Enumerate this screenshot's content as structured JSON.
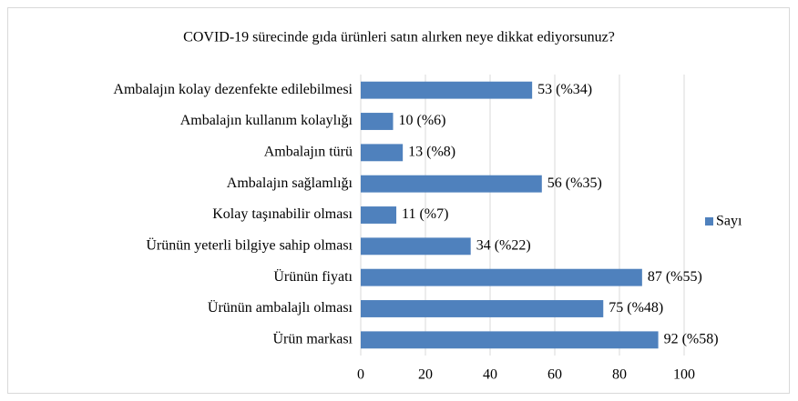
{
  "chart_data": {
    "type": "bar",
    "orientation": "horizontal",
    "title": "COVID-19 sürecinde gıda ürünleri satın alırken neye dikkat ediyorsunuz?",
    "categories": [
      "Ambalajın kolay dezenfekte edilebilmesi",
      "Ambalajın kullanım kolaylığı",
      "Ambalajın türü",
      "Ambalajın sağlamlığı",
      "Kolay taşınabilir olması",
      "Ürünün yeterli bilgiye sahip olması",
      "Ürünün fiyatı",
      "Ürünün ambalajlı olması",
      "Ürün markası"
    ],
    "series": [
      {
        "name": "Sayı",
        "color": "#4f81bd",
        "values": [
          53,
          10,
          13,
          56,
          11,
          34,
          87,
          75,
          92
        ],
        "value_labels": [
          "53 (%34)",
          "10 (%6)",
          "13 (%8)",
          "56 (%35)",
          "11 (%7)",
          "34 (%22)",
          "87 (%55)",
          "75 (%48)",
          "92 (%58)"
        ]
      }
    ],
    "xlim": [
      0,
      100
    ],
    "xticks": [
      0,
      20,
      40,
      60,
      80,
      100
    ],
    "grid": true,
    "legend": "right"
  }
}
